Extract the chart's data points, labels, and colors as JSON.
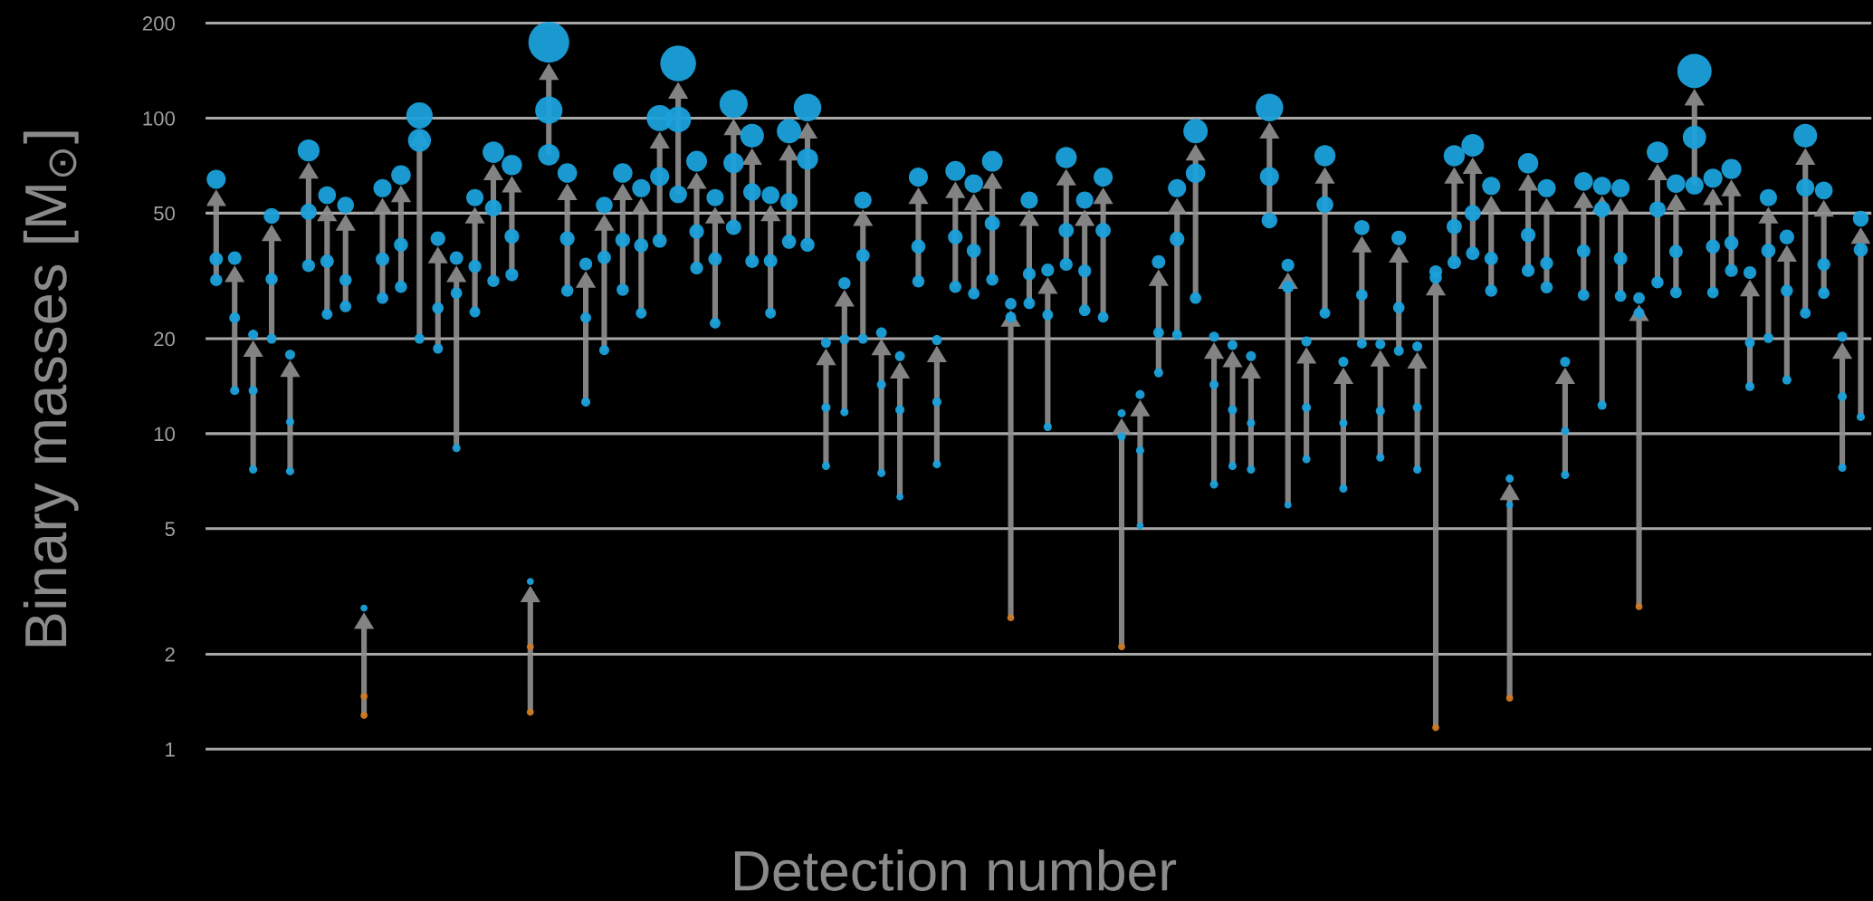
{
  "chart_data": {
    "type": "bubble",
    "xlabel": "Detection number",
    "ylabel": "Binary masses [M$_{⊙}$]",
    "categories": [
      null,
      null,
      null,
      null,
      null,
      null,
      null,
      null,
      null,
      null,
      null,
      null,
      null,
      null,
      null,
      null,
      null,
      null,
      null,
      null,
      null,
      null,
      null,
      null,
      null,
      null,
      null,
      null,
      null,
      null,
      null,
      null,
      null,
      null,
      null,
      null,
      null,
      null,
      null,
      null,
      null,
      null,
      null,
      null,
      null,
      null,
      null,
      null,
      null,
      null,
      null,
      null,
      null,
      null,
      null,
      null,
      null,
      null,
      null,
      null,
      null,
      null,
      null,
      null,
      null,
      null,
      null,
      null,
      null,
      null,
      null,
      null,
      null,
      null,
      null,
      null,
      null,
      null,
      null,
      null,
      null,
      null,
      null,
      null,
      null,
      null,
      null,
      null,
      null,
      null
    ],
    "log": true,
    "ylim": [
      1,
      200
    ],
    "yticks": [
      1,
      2,
      5,
      10,
      20,
      50,
      100,
      200
    ],
    "grid": "y",
    "tick_labels": "y",
    "marker": "circle",
    "series": [
      {
        "color": "#1ba1dc",
        "values": [
          64,
          36,
          20.6,
          49,
          17.8,
          79,
          57,
          53,
          2.8,
          60,
          66,
          102,
          41.5,
          36,
          56,
          78,
          71,
          3.4,
          174,
          67,
          34.5,
          53,
          67,
          60,
          100,
          149,
          73,
          56,
          111,
          88,
          57,
          91,
          108,
          19.4,
          30,
          55,
          20.9,
          17.6,
          65,
          19.8,
          68,
          62,
          73,
          25.8,
          55,
          33,
          75,
          55,
          65,
          11.6,
          13.3,
          35,
          60,
          91,
          20.3,
          19.1,
          17.6,
          108,
          34.2,
          19.6,
          76,
          16.9,
          45,
          19.2,
          41.7,
          18.9,
          32.6,
          76,
          82,
          61,
          7.2,
          72,
          60,
          16.9,
          63,
          61,
          60,
          26.9,
          78,
          62,
          141,
          64.5,
          69,
          32.4,
          56,
          42,
          88,
          59,
          20.3,
          48
        ],
        "sizes": [
          0.22,
          0.11,
          0.06,
          0.15,
          0.06,
          0.29,
          0.19,
          0.17,
          0.03,
          0.2,
          0.23,
          0.42,
          0.13,
          0.11,
          0.18,
          0.28,
          0.25,
          0.03,
          1,
          0.23,
          0.1,
          0.17,
          0.23,
          0.2,
          0.41,
          0.77,
          0.26,
          0.18,
          0.48,
          0.34,
          0.19,
          0.36,
          0.46,
          0.06,
          0.09,
          0.18,
          0.07,
          0.06,
          0.22,
          0.06,
          0.24,
          0.21,
          0.26,
          0.08,
          0.18,
          0.1,
          0.27,
          0.18,
          0.22,
          0.04,
          0.05,
          0.11,
          0.2,
          0.36,
          0.06,
          0.06,
          0.06,
          0.46,
          0.1,
          0.06,
          0.27,
          0.06,
          0.14,
          0.06,
          0.13,
          0.06,
          0.1,
          0.27,
          0.31,
          0.2,
          0.04,
          0.25,
          0.2,
          0.06,
          0.21,
          0.2,
          0.2,
          0.08,
          0.28,
          0.21,
          0.71,
          0.22,
          0.24,
          0.1,
          0.18,
          0.13,
          0.34,
          0.19,
          0.06,
          0.15
        ]
      },
      {
        "colors": [
          "#1ba1dc",
          "#1ba1dc",
          "#1ba1dc",
          "#1ba1dc",
          "#1ba1dc",
          "#1ba1dc",
          "#1ba1dc",
          "#1ba1dc",
          "#d07a26",
          "#1ba1dc",
          "#1ba1dc",
          "#1ba1dc",
          "#1ba1dc",
          "#1ba1dc",
          "#1ba1dc",
          "#1ba1dc",
          "#1ba1dc",
          "#d07a26",
          "#1ba1dc",
          "#1ba1dc",
          "#1ba1dc",
          "#1ba1dc",
          "#1ba1dc",
          "#1ba1dc",
          "#1ba1dc",
          "#1ba1dc",
          "#1ba1dc",
          "#1ba1dc",
          "#1ba1dc",
          "#1ba1dc",
          "#1ba1dc",
          "#1ba1dc",
          "#1ba1dc",
          "#1ba1dc",
          "#1ba1dc",
          "#1ba1dc",
          "#1ba1dc",
          "#1ba1dc",
          "#1ba1dc",
          "#1ba1dc",
          "#1ba1dc",
          "#1ba1dc",
          "#1ba1dc",
          "#1ba1dc",
          "#1ba1dc",
          "#1ba1dc",
          "#1ba1dc",
          "#1ba1dc",
          "#1ba1dc",
          "#1ba1dc",
          "#1ba1dc",
          "#1ba1dc",
          "#1ba1dc",
          "#1ba1dc",
          "#1ba1dc",
          "#1ba1dc",
          "#1ba1dc",
          "#1ba1dc",
          "#1ba1dc",
          "#1ba1dc",
          "#1ba1dc",
          "#1ba1dc",
          "#1ba1dc",
          "#1ba1dc",
          "#1ba1dc",
          "#1ba1dc",
          "#1ba1dc",
          "#1ba1dc",
          "#1ba1dc",
          "#1ba1dc",
          "#1ba1dc",
          "#1ba1dc",
          "#1ba1dc",
          "#1ba1dc",
          "#1ba1dc",
          "#1ba1dc",
          "#1ba1dc",
          "#1ba1dc",
          "#1ba1dc",
          "#1ba1dc",
          "#1ba1dc",
          "#1ba1dc",
          "#1ba1dc",
          "#1ba1dc",
          "#1ba1dc",
          "#1ba1dc",
          "#1ba1dc",
          "#1ba1dc",
          "#1ba1dc",
          "#1ba1dc"
        ],
        "values": [
          35.8,
          23.3,
          13.7,
          30.9,
          10.9,
          50.5,
          35.2,
          30.7,
          1.47,
          35.7,
          39.7,
          85,
          25,
          27.9,
          33.9,
          51.9,
          42.2,
          2.11,
          106,
          41.5,
          23.3,
          36.2,
          41.1,
          39.5,
          65.3,
          99,
          43.7,
          35.8,
          72.1,
          58.3,
          35.3,
          54.4,
          74.2,
          12.1,
          19.9,
          36.7,
          14.3,
          11.9,
          39.2,
          12.6,
          42,
          38,
          46.4,
          23.4,
          32.1,
          23.8,
          44.1,
          32.8,
          44.1,
          9.8,
          8.85,
          20.9,
          41.4,
          66.9,
          14.3,
          11.9,
          10.8,
          65.3,
          29.2,
          12.1,
          53.2,
          10.8,
          27.5,
          11.8,
          25.1,
          12.1,
          31.2,
          45.3,
          50,
          35.9,
          5.94,
          42.6,
          34.7,
          10.2,
          37.9,
          51.4,
          35.9,
          24.1,
          51.4,
          37.8,
          86.9,
          39.2,
          40.2,
          19.4,
          38,
          28.4,
          60.2,
          34.4,
          13.1,
          38.3
        ],
        "sizes": [
          0.11,
          0.07,
          0.05,
          0.09,
          0.04,
          0.16,
          0.11,
          0.09,
          0.03,
          0.11,
          0.12,
          0.32,
          0.08,
          0.08,
          0.1,
          0.17,
          0.13,
          0.03,
          0.45,
          0.13,
          0.07,
          0.11,
          0.13,
          0.12,
          0.22,
          0.4,
          0.13,
          0.11,
          0.25,
          0.19,
          0.11,
          0.18,
          0.27,
          0.05,
          0.06,
          0.11,
          0.05,
          0.05,
          0.12,
          0.05,
          0.13,
          0.12,
          0.14,
          0.07,
          0.1,
          0.07,
          0.14,
          0.1,
          0.14,
          0.04,
          0.04,
          0.07,
          0.13,
          0.23,
          0.05,
          0.05,
          0.04,
          0.22,
          0.09,
          0.05,
          0.17,
          0.04,
          0.08,
          0.05,
          0.08,
          0.05,
          0.09,
          0.14,
          0.16,
          0.11,
          0.03,
          0.13,
          0.1,
          0.04,
          0.11,
          0.16,
          0.11,
          0.07,
          0.16,
          0.11,
          0.33,
          0.12,
          0.12,
          0.06,
          0.12,
          0.09,
          0.2,
          0.1,
          0.05,
          0.12
        ]
      },
      {
        "colors": [
          "#1ba1dc",
          "#1ba1dc",
          "#1ba1dc",
          "#1ba1dc",
          "#1ba1dc",
          "#1ba1dc",
          "#1ba1dc",
          "#1ba1dc",
          "#d07a26",
          "#1ba1dc",
          "#1ba1dc",
          "#1ba1dc",
          "#1ba1dc",
          "#1ba1dc",
          "#1ba1dc",
          "#1ba1dc",
          "#1ba1dc",
          "#d07a26",
          "#1ba1dc",
          "#1ba1dc",
          "#1ba1dc",
          "#1ba1dc",
          "#1ba1dc",
          "#1ba1dc",
          "#1ba1dc",
          "#1ba1dc",
          "#1ba1dc",
          "#1ba1dc",
          "#1ba1dc",
          "#1ba1dc",
          "#1ba1dc",
          "#1ba1dc",
          "#1ba1dc",
          "#1ba1dc",
          "#1ba1dc",
          "#1ba1dc",
          "#1ba1dc",
          "#1ba1dc",
          "#1ba1dc",
          "#1ba1dc",
          "#1ba1dc",
          "#1ba1dc",
          "#1ba1dc",
          "#d07a26",
          "#1ba1dc",
          "#1ba1dc",
          "#1ba1dc",
          "#1ba1dc",
          "#1ba1dc",
          "#d07a26",
          "#1ba1dc",
          "#1ba1dc",
          "#1ba1dc",
          "#1ba1dc",
          "#1ba1dc",
          "#1ba1dc",
          "#1ba1dc",
          "#1ba1dc",
          "#1ba1dc",
          "#1ba1dc",
          "#1ba1dc",
          "#1ba1dc",
          "#1ba1dc",
          "#1ba1dc",
          "#1ba1dc",
          "#1ba1dc",
          "#d07a26",
          "#1ba1dc",
          "#1ba1dc",
          "#1ba1dc",
          "#d07a26",
          "#1ba1dc",
          "#1ba1dc",
          "#1ba1dc",
          "#1ba1dc",
          "#1ba1dc",
          "#1ba1dc",
          "#d07a26",
          "#1ba1dc",
          "#1ba1dc",
          "#1ba1dc",
          "#1ba1dc",
          "#1ba1dc",
          "#1ba1dc",
          "#1ba1dc",
          "#1ba1dc",
          "#1ba1dc",
          "#1ba1dc",
          "#1ba1dc",
          "#1ba1dc"
        ],
        "values": [
          30.7,
          13.7,
          7.7,
          20,
          7.6,
          34.1,
          23.9,
          25.3,
          1.28,
          26.9,
          29.2,
          20,
          18.6,
          9,
          24.3,
          30.5,
          31.9,
          1.31,
          76.6,
          28.4,
          12.6,
          18.4,
          28.6,
          24.1,
          40.9,
          57.4,
          33.5,
          22.4,
          45.1,
          35.2,
          24.1,
          40.6,
          39.7,
          7.9,
          11.7,
          20,
          7.5,
          6.3,
          30.4,
          8,
          29.2,
          27.8,
          30.8,
          2.61,
          25.9,
          10.5,
          34.4,
          24.6,
          23.4,
          2.11,
          5.1,
          15.6,
          20.6,
          26.9,
          6.9,
          7.9,
          7.7,
          47.4,
          5.94,
          8.3,
          24.1,
          6.7,
          19.3,
          8.4,
          18.3,
          7.7,
          1.17,
          34.9,
          37.3,
          28.4,
          1.45,
          32.9,
          29.1,
          7.4,
          27.5,
          12.3,
          27.3,
          2.83,
          30.2,
          28,
          61.2,
          28,
          32.9,
          14.1,
          20.1,
          14.8,
          24.1,
          27.9,
          7.8,
          11.3
        ],
        "sizes": [
          0.09,
          0.05,
          0.04,
          0.06,
          0.04,
          0.1,
          0.07,
          0.08,
          0.03,
          0.08,
          0.09,
          0.06,
          0.06,
          0.04,
          0.07,
          0.09,
          0.1,
          0.03,
          0.28,
          0.09,
          0.05,
          0.06,
          0.09,
          0.07,
          0.12,
          0.19,
          0.1,
          0.07,
          0.14,
          0.11,
          0.07,
          0.12,
          0.12,
          0.04,
          0.04,
          0.06,
          0.04,
          0.03,
          0.09,
          0.04,
          0.09,
          0.08,
          0.09,
          0.03,
          0.08,
          0.04,
          0.1,
          0.08,
          0.07,
          0.03,
          0.03,
          0.05,
          0.06,
          0.08,
          0.04,
          0.04,
          0.04,
          0.15,
          0.03,
          0.04,
          0.07,
          0.04,
          0.06,
          0.04,
          0.06,
          0.04,
          0.03,
          0.11,
          0.11,
          0.09,
          0.03,
          0.1,
          0.09,
          0.04,
          0.08,
          0.05,
          0.08,
          0.03,
          0.09,
          0.08,
          0.2,
          0.08,
          0.1,
          0.05,
          0.06,
          0.05,
          0.07,
          0.08,
          0.04,
          0.04
        ]
      }
    ]
  }
}
